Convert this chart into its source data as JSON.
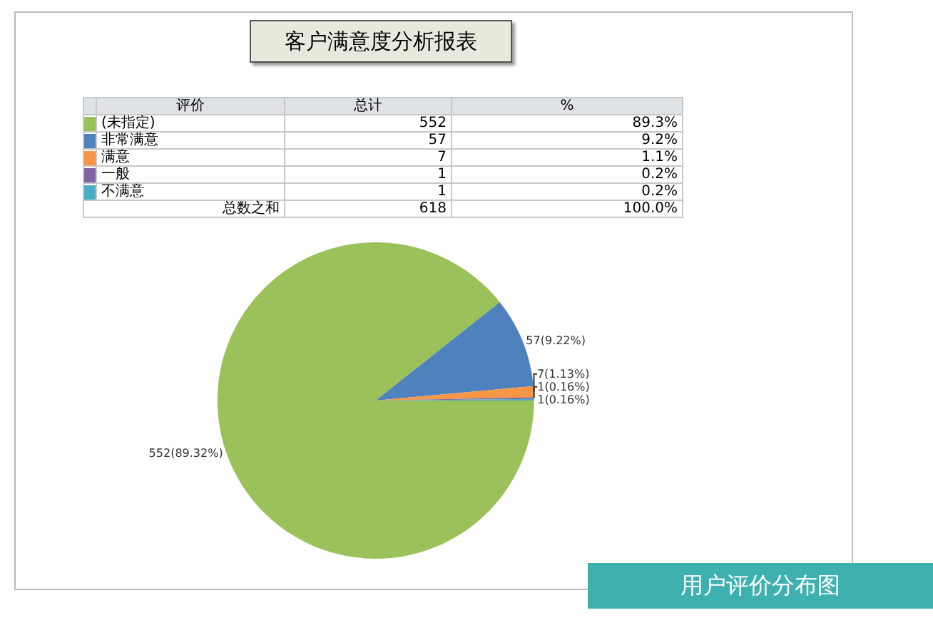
{
  "chart_data": {
    "type": "pie",
    "title": "客户满意度分析报表",
    "categories": [
      "(未指定)",
      "非常满意",
      "满意",
      "一般",
      "不满意"
    ],
    "values": [
      552,
      57,
      7,
      1,
      1
    ],
    "colors": [
      "#9bc15a",
      "#4f81bd",
      "#f79646",
      "#8064a2",
      "#4bacc6"
    ],
    "value_labels": [
      "552(89.32%)",
      "57(9.22%)",
      "7(1.13%)",
      "1(0.16%)",
      "1(0.16%)"
    ],
    "data_labels": true,
    "legend": "top left",
    "annotations": [
      "评价",
      "总计",
      "%",
      "总数之和",
      "618",
      "100.0%",
      "89.3%",
      "9.2%",
      "1.1%",
      "0.2%",
      "0.2%",
      "用户评价分布图",
      "552",
      "57",
      "7",
      "1",
      "1"
    ]
  }
}
